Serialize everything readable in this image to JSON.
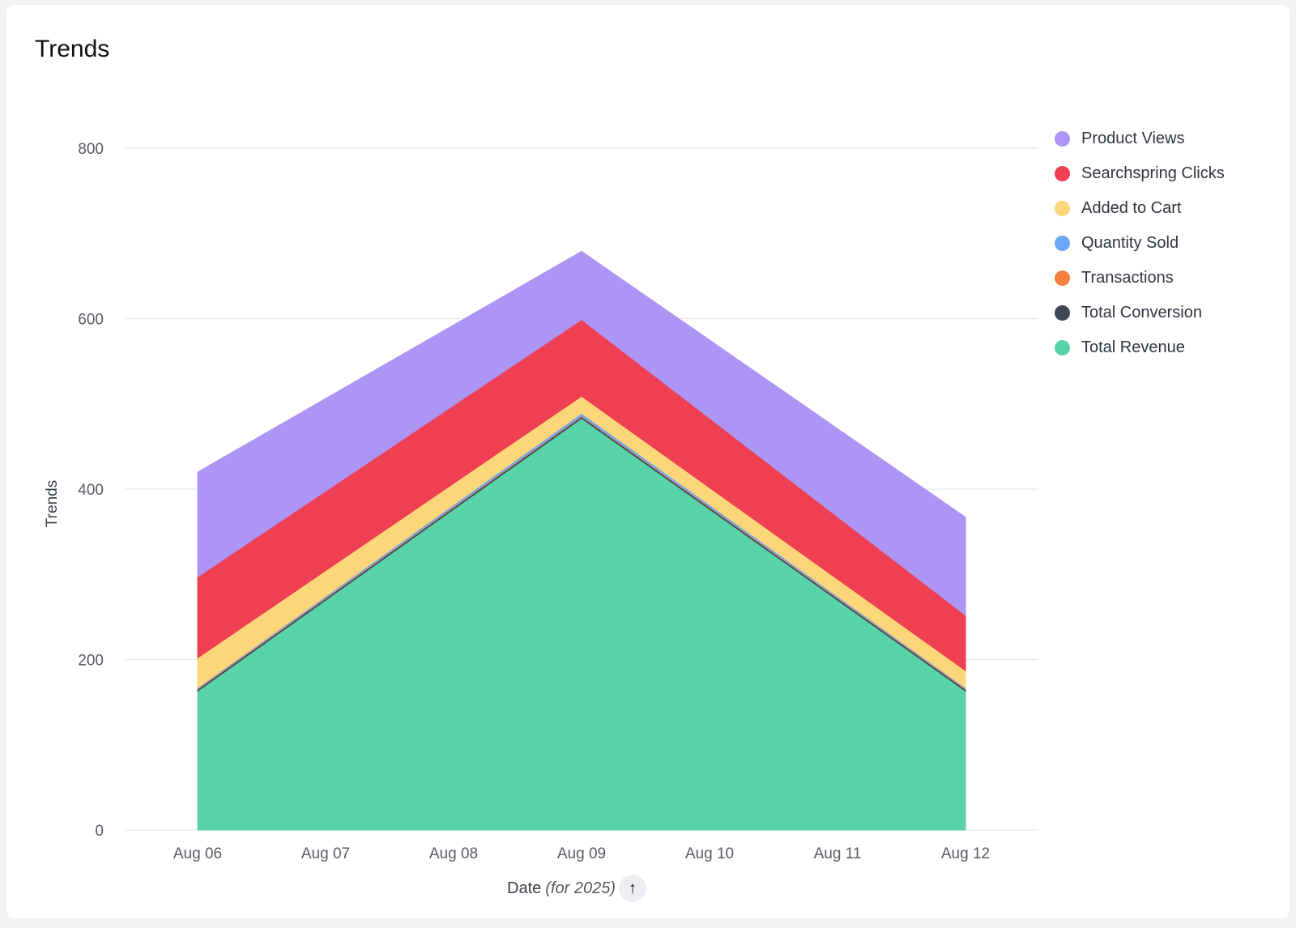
{
  "card": {
    "title": "Trends"
  },
  "chart_data": {
    "type": "area",
    "stacked": true,
    "title": "Trends",
    "xlabel": "Date",
    "xlabel_note": "(for 2025)",
    "ylabel": "Trends",
    "ylim": [
      0,
      800
    ],
    "yticks": [
      0,
      200,
      400,
      600,
      800
    ],
    "categories": [
      "Aug 06",
      "Aug 07",
      "Aug 08",
      "Aug 09",
      "Aug 10",
      "Aug 11",
      "Aug 12"
    ],
    "x_indices_with_data": [
      0,
      3,
      6
    ],
    "series": [
      {
        "name": "Total Revenue",
        "color": "#58d3a8",
        "values": [
          163,
          null,
          null,
          483,
          null,
          null,
          163
        ]
      },
      {
        "name": "Total Conversion",
        "color": "#3f4756",
        "values": [
          2,
          null,
          null,
          2,
          null,
          null,
          2
        ]
      },
      {
        "name": "Transactions",
        "color": "#f47f3f",
        "values": [
          1,
          null,
          null,
          1,
          null,
          null,
          1
        ]
      },
      {
        "name": "Quantity Sold",
        "color": "#6aa8f7",
        "values": [
          1,
          null,
          null,
          3,
          null,
          null,
          1
        ]
      },
      {
        "name": "Added to Cart",
        "color": "#fcd679",
        "values": [
          35,
          null,
          null,
          20,
          null,
          null,
          20
        ]
      },
      {
        "name": "Searchspring Clicks",
        "color": "#ef3f52",
        "values": [
          95,
          null,
          null,
          90,
          null,
          null,
          65
        ]
      },
      {
        "name": "Product Views",
        "color": "#ad95f6",
        "values": [
          123,
          null,
          null,
          80,
          null,
          null,
          115
        ]
      }
    ],
    "legend": {
      "placement": "right",
      "items": [
        "Product Views",
        "Searchspring Clicks",
        "Added to Cart",
        "Quantity Sold",
        "Transactions",
        "Total Conversion",
        "Total Revenue"
      ]
    },
    "grid": true
  },
  "sort": {
    "icon": "arrow-up-icon",
    "glyph": "↑"
  }
}
